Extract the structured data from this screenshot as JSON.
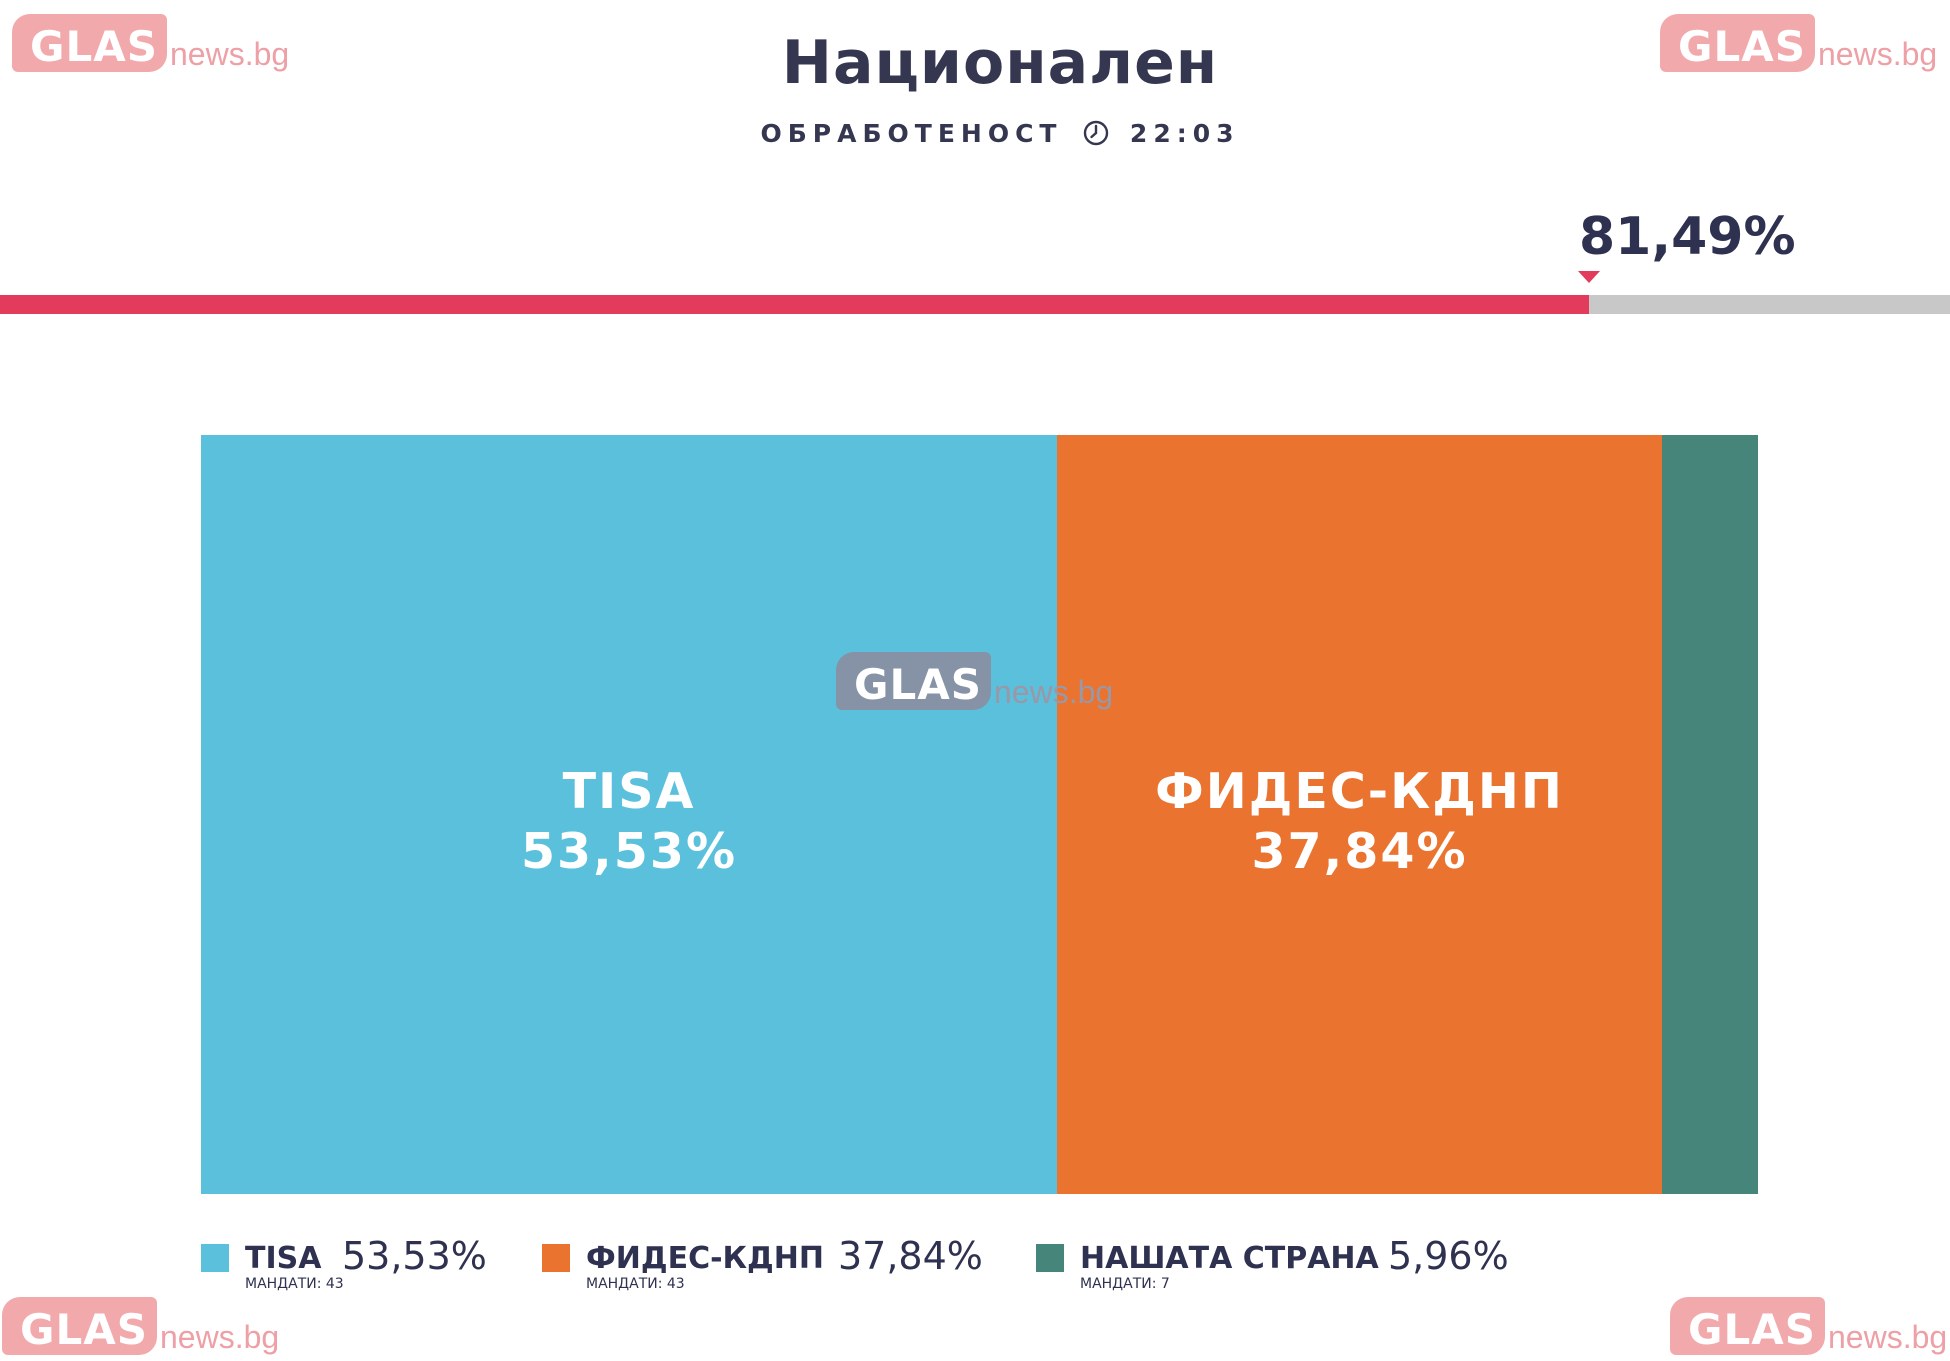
{
  "header": {
    "title": "Национален",
    "subtitle_label": "ОБРАБОТЕНОСТ",
    "time": "22:03",
    "clock_icon": "clock-icon"
  },
  "processed": {
    "value_label": "81,49%",
    "fraction": 0.8149
  },
  "watermark": {
    "brand": "GLAS",
    "domain": "news.bg"
  },
  "colors": {
    "progress": "#e23b5c",
    "track": "#c8c8c8",
    "text": "#353650"
  },
  "chart_data": {
    "type": "bar",
    "stacked": true,
    "orientation": "horizontal-stack",
    "series": [
      {
        "name": "TISA",
        "value": 53.53,
        "value_label": "53,53%",
        "seats_label": "МАНДАТИ: 43",
        "color": "#5bc0dc"
      },
      {
        "name": "ФИДЕС-КДНП",
        "value": 37.84,
        "value_label": "37,84%",
        "seats_label": "МАНДАТИ: 43",
        "color": "#ea732f"
      },
      {
        "name": "НАШАТА СТРАНА",
        "value": 5.96,
        "value_label": "5,96%",
        "seats_label": "МАНДАТИ: 7",
        "color": "#46867a"
      }
    ],
    "legend": "bottom"
  }
}
